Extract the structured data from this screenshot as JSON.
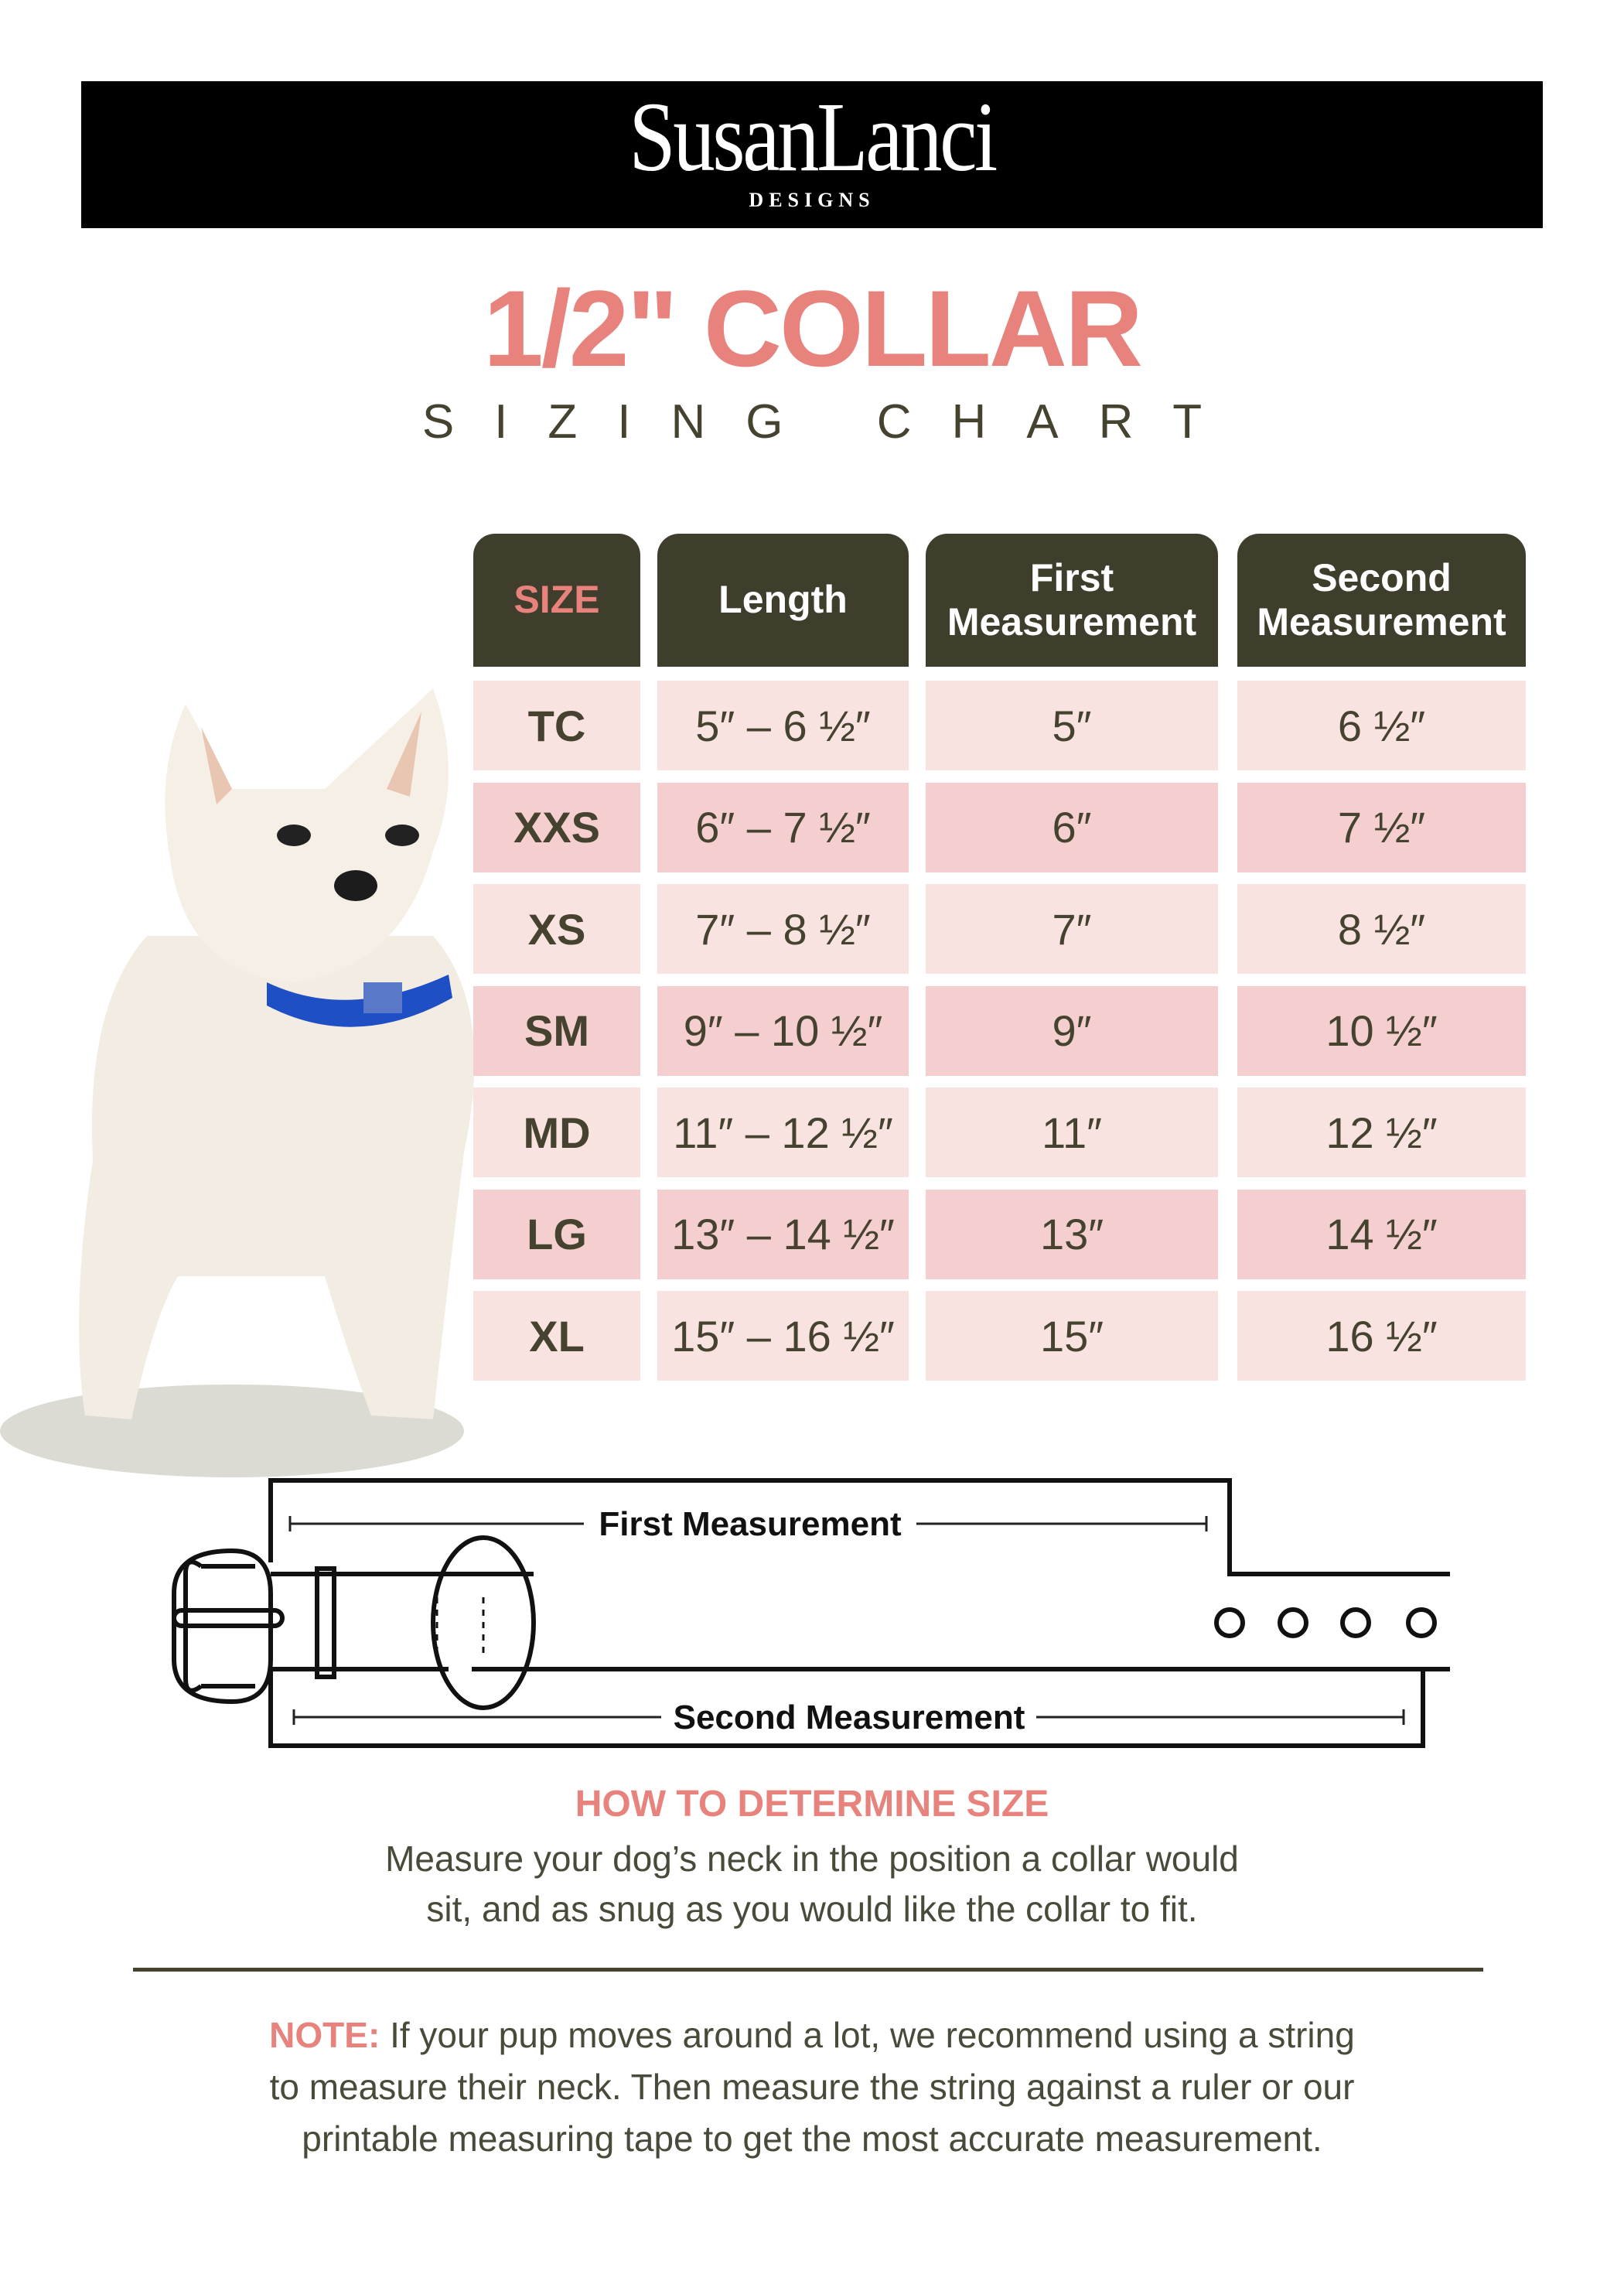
{
  "brand": {
    "name": "SusanLanci",
    "sub": "DESIGNS"
  },
  "title": "1/2\" COLLAR",
  "subtitle": "SIZING CHART",
  "colors": {
    "accent": "#e8827c",
    "dark": "#3f3d2b",
    "row_light": "#f9e3e1",
    "row_dark": "#f5cfcf"
  },
  "table": {
    "headers": [
      "SIZE",
      "Length",
      "First Measurement",
      "Second Measurement"
    ],
    "rows": [
      [
        "TC",
        "5″ – 6 ½″",
        "5″",
        "6 ½″"
      ],
      [
        "XXS",
        "6″ – 7 ½″",
        "6″",
        "7 ½″"
      ],
      [
        "XS",
        "7″ – 8 ½″",
        "7″",
        "8 ½″"
      ],
      [
        "SM",
        "9″ – 10 ½″",
        "9″",
        "10 ½″"
      ],
      [
        "MD",
        "11″ – 12 ½″",
        "11″",
        "12 ½″"
      ],
      [
        "LG",
        "13″ – 14 ½″",
        "13″",
        "14 ½″"
      ],
      [
        "XL",
        "15″ – 16 ½″",
        "15″",
        "16 ½″"
      ]
    ]
  },
  "diagram": {
    "first_label": "First Measurement",
    "second_label": "Second Measurement"
  },
  "how": {
    "heading": "HOW TO DETERMINE SIZE",
    "lines": [
      "Measure your dog’s neck in the position a collar would",
      "sit, and as snug as you would  like the collar to fit."
    ]
  },
  "note": {
    "label": "NOTE:",
    "lines": [
      "If your pup moves around a lot, we recommend using a string",
      "to measure their neck. Then measure the string against a ruler or our",
      "printable measuring tape to get the most accurate measurement."
    ]
  }
}
